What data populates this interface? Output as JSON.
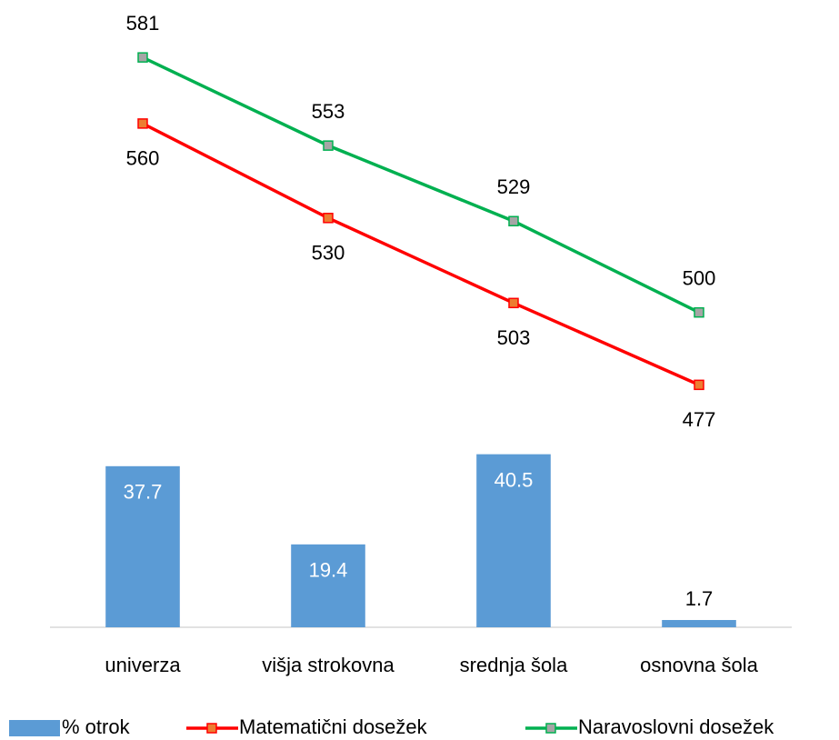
{
  "chart_data": {
    "type": "bar-line",
    "categories": [
      "univerza",
      "višja strokovna",
      "srednja šola",
      "osnovna šola"
    ],
    "series": [
      {
        "name": "% otrok",
        "type": "bar",
        "color": "#5b9bd5",
        "values": [
          37.7,
          19.4,
          40.5,
          1.7
        ]
      },
      {
        "name": "Matematični dosežek",
        "type": "line",
        "axis": "y2",
        "color": "#ff0000",
        "marker_color": "#ed7d31",
        "values": [
          560,
          530,
          503,
          477
        ]
      },
      {
        "name": "Naravoslovni dosežek",
        "type": "line",
        "axis": "y2",
        "color": "#00b050",
        "marker_color": "#a5a5a5",
        "values": [
          581,
          553,
          529,
          500
        ]
      }
    ],
    "ylim": [
      0,
      140
    ],
    "y2lim": [
      400,
      590
    ],
    "legend": "bottom"
  }
}
